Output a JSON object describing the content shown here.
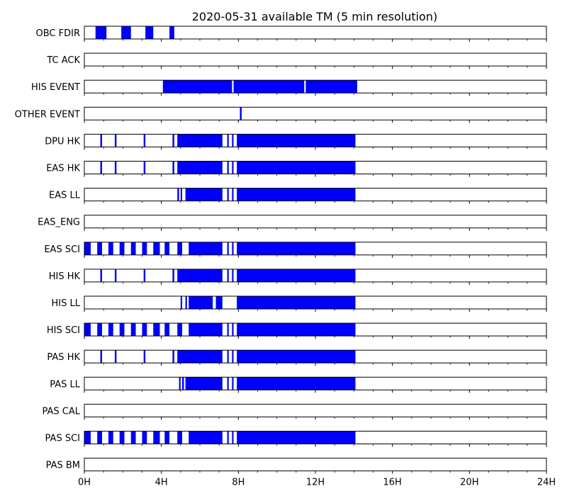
{
  "chart_data": {
    "type": "timeline",
    "title": "2020-05-31 available TM (5 min resolution)",
    "xlim": [
      0,
      24
    ],
    "x_unit": "hours",
    "x_ticks": [
      0,
      4,
      8,
      12,
      16,
      20,
      24
    ],
    "x_tick_labels": [
      "0H",
      "4H",
      "8H",
      "12H",
      "16H",
      "20H",
      "24H"
    ],
    "x_minor_step": 1,
    "bar_color": "#0000ff",
    "rows": [
      {
        "label": "OBC FDIR",
        "intervals": [
          [
            0.58,
            1.15
          ],
          [
            1.92,
            2.42
          ],
          [
            3.17,
            3.58
          ],
          [
            4.42,
            4.67
          ]
        ]
      },
      {
        "label": "TC ACK",
        "intervals": []
      },
      {
        "label": "HIS EVENT",
        "intervals": [
          [
            4.08,
            7.67
          ],
          [
            7.75,
            11.42
          ],
          [
            11.5,
            14.17
          ]
        ]
      },
      {
        "label": "OTHER EVENT",
        "intervals": [
          [
            8.08,
            8.17
          ]
        ]
      },
      {
        "label": "DPU HK",
        "intervals": [
          [
            0.83,
            0.92
          ],
          [
            1.58,
            1.67
          ],
          [
            3.08,
            3.17
          ],
          [
            4.58,
            4.67
          ],
          [
            4.83,
            7.17
          ],
          [
            7.42,
            7.5
          ],
          [
            7.67,
            7.75
          ],
          [
            7.92,
            14.08
          ]
        ]
      },
      {
        "label": "EAS HK",
        "intervals": [
          [
            0.83,
            0.92
          ],
          [
            1.58,
            1.67
          ],
          [
            3.08,
            3.17
          ],
          [
            4.58,
            4.67
          ],
          [
            4.83,
            7.17
          ],
          [
            7.42,
            7.5
          ],
          [
            7.67,
            7.75
          ],
          [
            7.92,
            14.08
          ]
        ]
      },
      {
        "label": "EAS LL",
        "intervals": [
          [
            4.83,
            4.92
          ],
          [
            5.0,
            5.08
          ],
          [
            5.25,
            7.17
          ],
          [
            7.42,
            7.5
          ],
          [
            7.67,
            7.75
          ],
          [
            7.92,
            14.08
          ]
        ]
      },
      {
        "label": "EAS_ENG",
        "intervals": []
      },
      {
        "label": "EAS SCI",
        "intervals": [
          [
            0.0,
            0.33
          ],
          [
            0.67,
            0.92
          ],
          [
            1.25,
            1.5
          ],
          [
            1.83,
            2.08
          ],
          [
            2.42,
            2.67
          ],
          [
            3.0,
            3.25
          ],
          [
            3.58,
            3.92
          ],
          [
            4.17,
            4.42
          ],
          [
            4.83,
            5.08
          ],
          [
            5.42,
            7.17
          ],
          [
            7.42,
            7.5
          ],
          [
            7.67,
            7.75
          ],
          [
            7.92,
            14.08
          ]
        ]
      },
      {
        "label": "HIS HK",
        "intervals": [
          [
            0.83,
            0.92
          ],
          [
            1.58,
            1.67
          ],
          [
            3.08,
            3.17
          ],
          [
            4.58,
            4.67
          ],
          [
            4.83,
            7.17
          ],
          [
            7.42,
            7.5
          ],
          [
            7.67,
            7.75
          ],
          [
            7.92,
            14.08
          ]
        ]
      },
      {
        "label": "HIS LL",
        "intervals": [
          [
            5.0,
            5.08
          ],
          [
            5.25,
            5.33
          ],
          [
            5.42,
            6.67
          ],
          [
            6.83,
            7.17
          ],
          [
            7.92,
            14.08
          ]
        ]
      },
      {
        "label": "HIS SCI",
        "intervals": [
          [
            0.0,
            0.33
          ],
          [
            0.67,
            0.92
          ],
          [
            1.25,
            1.5
          ],
          [
            1.83,
            2.08
          ],
          [
            2.42,
            2.67
          ],
          [
            3.0,
            3.25
          ],
          [
            3.58,
            3.92
          ],
          [
            4.17,
            4.42
          ],
          [
            4.83,
            5.08
          ],
          [
            5.42,
            7.17
          ],
          [
            7.42,
            7.5
          ],
          [
            7.67,
            7.75
          ],
          [
            7.92,
            14.08
          ]
        ]
      },
      {
        "label": "PAS HK",
        "intervals": [
          [
            0.83,
            0.92
          ],
          [
            1.58,
            1.67
          ],
          [
            3.08,
            3.17
          ],
          [
            4.58,
            4.67
          ],
          [
            4.83,
            7.17
          ],
          [
            7.42,
            7.5
          ],
          [
            7.67,
            7.75
          ],
          [
            7.92,
            14.08
          ]
        ]
      },
      {
        "label": "PAS LL",
        "intervals": [
          [
            4.92,
            5.0
          ],
          [
            5.08,
            5.17
          ],
          [
            5.25,
            7.17
          ],
          [
            7.42,
            7.5
          ],
          [
            7.67,
            7.75
          ],
          [
            7.92,
            14.08
          ]
        ]
      },
      {
        "label": "PAS CAL",
        "intervals": []
      },
      {
        "label": "PAS SCI",
        "intervals": [
          [
            0.0,
            0.33
          ],
          [
            0.67,
            0.92
          ],
          [
            1.25,
            1.5
          ],
          [
            1.83,
            2.08
          ],
          [
            2.42,
            2.67
          ],
          [
            3.0,
            3.25
          ],
          [
            3.58,
            3.92
          ],
          [
            4.17,
            4.42
          ],
          [
            4.83,
            5.08
          ],
          [
            5.42,
            7.17
          ],
          [
            7.42,
            7.5
          ],
          [
            7.67,
            7.75
          ],
          [
            7.92,
            14.08
          ]
        ]
      },
      {
        "label": "PAS BM",
        "intervals": []
      }
    ]
  }
}
